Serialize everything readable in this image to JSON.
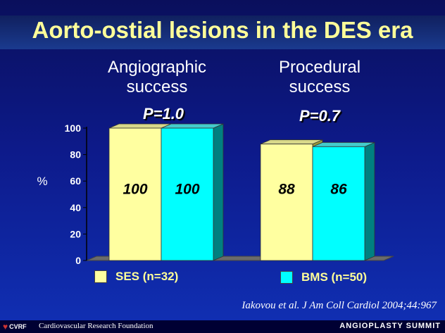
{
  "title": "Aorto-ostial lesions in the DES era",
  "groups": [
    {
      "label_line1": "Angiographic",
      "label_line2": "success",
      "pvalue": "P=1.0"
    },
    {
      "label_line1": "Procedural",
      "label_line2": "success",
      "pvalue": "P=0.7"
    }
  ],
  "legend": [
    {
      "label": "SES (n=32)",
      "color": "#ffffa0"
    },
    {
      "label": "BMS (n=50)",
      "color": "#00ffff"
    }
  ],
  "citation": "Iakovou et al. J Am Coll Cardiol 2004;44:967",
  "footer": {
    "logo": "CVRF",
    "org": "Cardiovascular Research Foundation",
    "summit": "ANGIOPLASTY SUMMIT"
  },
  "chart_data": {
    "type": "bar",
    "categories": [
      "Angiographic success",
      "Procedural success"
    ],
    "series": [
      {
        "name": "SES (n=32)",
        "values": [
          100,
          88
        ],
        "color": "#ffffa0"
      },
      {
        "name": "BMS (n=50)",
        "values": [
          100,
          86
        ],
        "color": "#00ffff"
      }
    ],
    "data_labels": [
      [
        "100",
        "100"
      ],
      [
        "88",
        "86"
      ]
    ],
    "ylabel": "%",
    "ylim": [
      0,
      100
    ],
    "yticks": [
      0,
      20,
      40,
      60,
      80,
      100
    ],
    "grid": false,
    "three_d": true,
    "legend_position": "bottom"
  }
}
